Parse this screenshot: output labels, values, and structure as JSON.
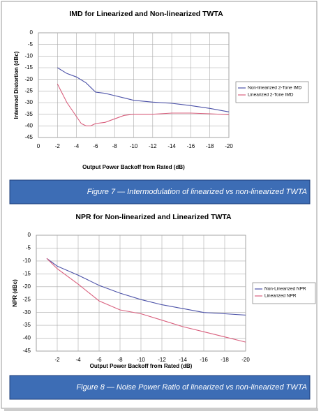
{
  "chart_data": [
    {
      "type": "line",
      "title": "IMD for Linearized and Non-linearized TWTA",
      "x_label": "Output Power Backoff from Rated (dB)",
      "y_label": "Intermod Distortion (dBc)",
      "xlim": [
        0,
        -20
      ],
      "xticks": [
        0,
        -2,
        -4,
        -6,
        -8,
        -10,
        -12,
        -14,
        -16,
        -18,
        -20
      ],
      "ylim": [
        -45,
        0
      ],
      "yticks": [
        0,
        -5,
        -10,
        -15,
        -20,
        -25,
        -30,
        -35,
        -40,
        -45
      ],
      "grid": true,
      "series": [
        {
          "name": "Non-linearized 2-Tone IMD",
          "color": "#4c52a8",
          "x": [
            -2,
            -3,
            -4,
            -5,
            -5.5,
            -6,
            -7,
            -8,
            -9,
            -10,
            -12,
            -14,
            -16,
            -18,
            -20
          ],
          "values": [
            -15,
            -17.5,
            -19,
            -21.5,
            -23.5,
            -25.5,
            -26,
            -27,
            -28,
            -29,
            -29.8,
            -30.3,
            -31.3,
            -32.5,
            -34
          ]
        },
        {
          "name": "Linearized 2-Tone IMD",
          "color": "#d9607e",
          "x": [
            -2,
            -3,
            -4,
            -4.5,
            -5,
            -5.5,
            -6,
            -7,
            -8,
            -9,
            -10,
            -12,
            -14,
            -16,
            -18,
            -20
          ],
          "values": [
            -22,
            -30,
            -36,
            -39,
            -40,
            -40,
            -39,
            -38.5,
            -37,
            -35.5,
            -35,
            -35,
            -34.5,
            -34.5,
            -34.8,
            -35.2
          ]
        }
      ],
      "caption": "Figure 7 —  Intermodulation of linearized vs non-linearized TWTA"
    },
    {
      "type": "line",
      "title": "NPR for Non-linearized and Linearized TWTA",
      "x_label": "Output Power Backoff from Rated (dB)",
      "y_label": "NPR (dBc)",
      "xlim": [
        0,
        -20
      ],
      "xticks": [
        -2,
        -4,
        -6,
        -8,
        -10,
        -12,
        -14,
        -16,
        -18,
        -20
      ],
      "ylim": [
        -45,
        0
      ],
      "yticks": [
        0,
        -5,
        -10,
        -15,
        -20,
        -25,
        -30,
        -35,
        -40,
        -45
      ],
      "grid": true,
      "series": [
        {
          "name": "Non-Linearized NPR",
          "color": "#4c52a8",
          "x": [
            -1,
            -2,
            -4,
            -6,
            -8,
            -10,
            -12,
            -14,
            -16,
            -18,
            -20
          ],
          "values": [
            -9,
            -12,
            -15.5,
            -19.5,
            -22.5,
            -25,
            -27,
            -28.5,
            -30,
            -30.5,
            -31
          ]
        },
        {
          "name": "Linearized NPR",
          "color": "#d9607e",
          "x": [
            -1,
            -2,
            -4,
            -6,
            -8,
            -10,
            -12,
            -14,
            -16,
            -18,
            -20
          ],
          "values": [
            -9,
            -13,
            -19,
            -25.5,
            -29,
            -30.5,
            -33,
            -35.5,
            -37.5,
            -39.5,
            -41.5
          ]
        }
      ],
      "caption": "Figure 8 — Noise Power Ratio of linearized vs non-linearized TWTA"
    }
  ]
}
